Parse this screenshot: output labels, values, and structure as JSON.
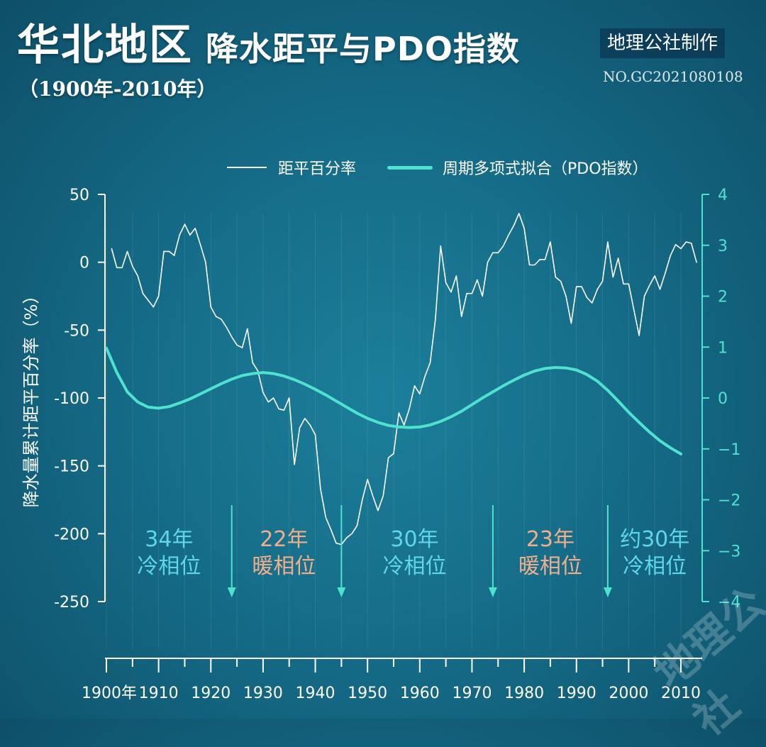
{
  "title": {
    "main": "华北地区",
    "sub": "降水距平与PDO指数",
    "range": "（1900年-2010年）"
  },
  "badge": {
    "label": "地理公社制作",
    "code": "NO.GC2021080108"
  },
  "watermark": "地理公社",
  "colors": {
    "background": "#156c88",
    "precip_line": "#ffffff",
    "pdo_line": "#4fe3cf",
    "cold_phase": "#5fd6ea",
    "warm_phase": "#f2ae8a",
    "arrow": "#4fe3cf"
  },
  "chart_data": {
    "type": "line",
    "legend": {
      "precip": "距平百分率",
      "pdo": "周期多项式拟合（PDO指数）"
    },
    "ylabel_left": "降水量累计距平百分率（%）",
    "yticks_left": [
      "50",
      "0",
      "-50",
      "-100",
      "-150",
      "-200",
      "-250"
    ],
    "ylim_left": [
      -250,
      50
    ],
    "yticks_right": [
      "4",
      "3",
      "2",
      "1",
      "0",
      "−1",
      "−2",
      "−3",
      "−4"
    ],
    "ylim_right": [
      -4,
      4
    ],
    "xticks": [
      "1900年",
      "1910",
      "1920",
      "1930",
      "1940",
      "1950",
      "1960",
      "1970",
      "1980",
      "1990",
      "2000",
      "2010"
    ],
    "xlim": [
      1900,
      2013
    ],
    "series": [
      {
        "name": "距平百分率",
        "axis": "left",
        "x": [
          1901,
          1902,
          1903,
          1904,
          1905,
          1906,
          1907,
          1908,
          1909,
          1910,
          1911,
          1912,
          1913,
          1914,
          1915,
          1916,
          1917,
          1918,
          1919,
          1920,
          1921,
          1922,
          1923,
          1924,
          1925,
          1926,
          1927,
          1928,
          1929,
          1930,
          1931,
          1932,
          1933,
          1934,
          1935,
          1936,
          1937,
          1938,
          1939,
          1940,
          1941,
          1942,
          1943,
          1944,
          1945,
          1946,
          1947,
          1948,
          1949,
          1950,
          1951,
          1952,
          1953,
          1954,
          1955,
          1956,
          1957,
          1958,
          1959,
          1960,
          1961,
          1962,
          1963,
          1964,
          1965,
          1966,
          1967,
          1968,
          1969,
          1970,
          1971,
          1972,
          1973,
          1974,
          1975,
          1976,
          1977,
          1978,
          1979,
          1980,
          1981,
          1982,
          1983,
          1984,
          1985,
          1986,
          1987,
          1988,
          1989,
          1990,
          1991,
          1992,
          1993,
          1994,
          1995,
          1996,
          1997,
          1998,
          1999,
          2000,
          2001,
          2002,
          2003,
          2004,
          2005,
          2006,
          2007,
          2008,
          2009,
          2010,
          2011,
          2012,
          2013
        ],
        "values": [
          10,
          -4,
          -4,
          8,
          -3,
          -10,
          -23,
          -28,
          -33,
          -25,
          8,
          8,
          5,
          20,
          28,
          20,
          25,
          13,
          0,
          -33,
          -40,
          -42,
          -48,
          -55,
          -61,
          -63,
          -49,
          -74,
          -80,
          -96,
          -103,
          -100,
          -108,
          -109,
          -100,
          -149,
          -122,
          -115,
          -120,
          -127,
          -167,
          -188,
          -197,
          -207,
          -208,
          -203,
          -200,
          -194,
          -175,
          -160,
          -172,
          -183,
          -172,
          -144,
          -141,
          -111,
          -120,
          -108,
          -91,
          -97,
          -84,
          -74,
          -42,
          12,
          -15,
          -22,
          -10,
          -40,
          -23,
          -23,
          -13,
          -25,
          0,
          7,
          7,
          12,
          20,
          27,
          36,
          25,
          -2,
          -2,
          2,
          2,
          15,
          -11,
          -14,
          -25,
          -45,
          -18,
          -18,
          -26,
          -30,
          -20,
          -14,
          15,
          -11,
          3,
          -16,
          -16,
          -35,
          -54,
          -25,
          -17,
          -10,
          -20,
          -8,
          5,
          13,
          10,
          15,
          14,
          0
        ]
      },
      {
        "name": "周期多项式拟合（PDO指数）",
        "axis": "right",
        "x": [
          1900,
          1902,
          1904,
          1906,
          1908,
          1910,
          1912,
          1914,
          1916,
          1918,
          1920,
          1922,
          1924,
          1926,
          1928,
          1930,
          1932,
          1934,
          1936,
          1938,
          1940,
          1942,
          1944,
          1946,
          1948,
          1950,
          1952,
          1954,
          1956,
          1958,
          1960,
          1962,
          1964,
          1966,
          1968,
          1970,
          1972,
          1974,
          1976,
          1978,
          1980,
          1982,
          1984,
          1986,
          1988,
          1990,
          1992,
          1994,
          1996,
          1998,
          2000,
          2002,
          2004,
          2006,
          2008,
          2010
        ],
        "values": [
          0.98,
          0.5,
          0.12,
          -0.08,
          -0.18,
          -0.2,
          -0.17,
          -0.1,
          -0.02,
          0.08,
          0.18,
          0.28,
          0.37,
          0.44,
          0.48,
          0.5,
          0.48,
          0.43,
          0.36,
          0.27,
          0.17,
          0.06,
          -0.06,
          -0.18,
          -0.3,
          -0.4,
          -0.48,
          -0.54,
          -0.57,
          -0.58,
          -0.57,
          -0.53,
          -0.46,
          -0.37,
          -0.26,
          -0.13,
          0.0,
          0.12,
          0.24,
          0.35,
          0.45,
          0.53,
          0.58,
          0.6,
          0.59,
          0.55,
          0.46,
          0.33,
          0.15,
          -0.06,
          -0.28,
          -0.48,
          -0.67,
          -0.84,
          -0.98,
          -1.1
        ]
      }
    ],
    "phase_dividers": [
      1924,
      1945,
      1974,
      1996
    ],
    "phases": [
      {
        "years": "34年",
        "label": "冷相位",
        "kind": "cold",
        "center": 1912
      },
      {
        "years": "22年",
        "label": "暖相位",
        "kind": "warm",
        "center": 1934
      },
      {
        "years": "30年",
        "label": "冷相位",
        "kind": "cold",
        "center": 1959
      },
      {
        "years": "23年",
        "label": "暖相位",
        "kind": "warm",
        "center": 1985
      },
      {
        "years": "约30年",
        "label": "冷相位",
        "kind": "cold",
        "center": 2005
      }
    ]
  }
}
